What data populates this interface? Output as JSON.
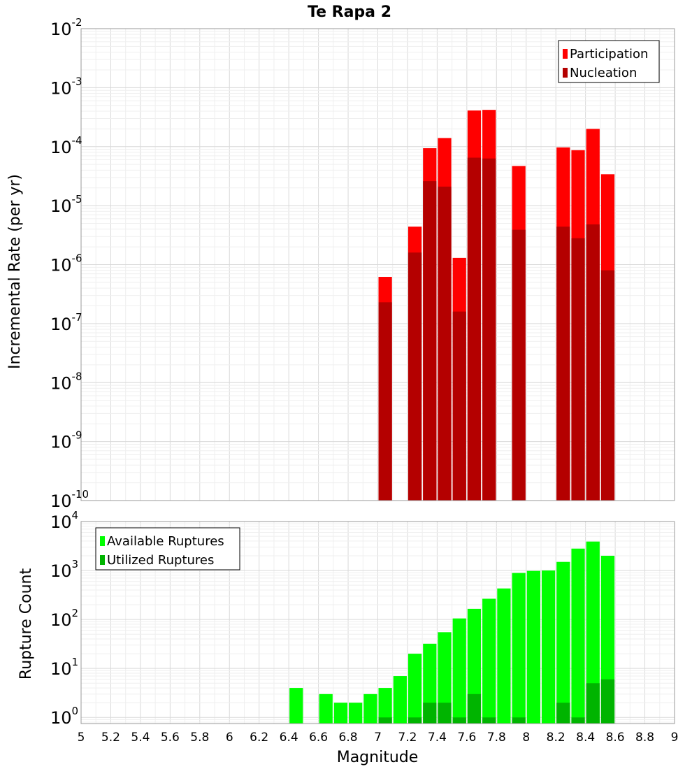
{
  "colors": {
    "participation": "#ff0000",
    "nucleation": "#b40000",
    "available": "#00ff00",
    "utilized": "#00b400",
    "grid_major": "#d9d9d9",
    "grid_minor": "#efefef",
    "frame": "#9a9a9a"
  },
  "chart_data": [
    {
      "type": "bar",
      "title": "Te Rapa 2",
      "ylabel": "Incremental Rate (per yr)",
      "xlabel": "",
      "xlim": [
        5,
        9
      ],
      "ylim": [
        1e-10,
        0.01
      ],
      "yscale": "log",
      "ytick_exponents": [
        "-2",
        "-3",
        "-4",
        "-5",
        "-6",
        "-7",
        "-8",
        "-9",
        "-10"
      ],
      "grid": true,
      "legend_position": "top-right",
      "bar_width": 0.1,
      "series": [
        {
          "name": "Participation",
          "x": [
            7.05,
            7.25,
            7.35,
            7.45,
            7.55,
            7.65,
            7.75,
            7.95,
            8.25,
            8.35,
            8.45,
            8.55
          ],
          "values": [
            6.2e-07,
            4.4e-06,
            9.4e-05,
            0.00014,
            1.3e-06,
            0.00041,
            0.00042,
            4.7e-05,
            9.7e-05,
            8.7e-05,
            0.0002,
            3.4e-05
          ]
        },
        {
          "name": "Nucleation",
          "x": [
            7.05,
            7.25,
            7.35,
            7.45,
            7.55,
            7.65,
            7.75,
            7.95,
            8.25,
            8.35,
            8.45,
            8.55
          ],
          "values": [
            2.3e-07,
            1.6e-06,
            2.6e-05,
            2.1e-05,
            1.6e-07,
            6.5e-05,
            6.3e-05,
            3.9e-06,
            4.4e-06,
            2.8e-06,
            4.8e-06,
            8e-07
          ]
        }
      ]
    },
    {
      "type": "bar",
      "title": "",
      "ylabel": "Rupture Count",
      "xlabel": "Magnitude",
      "xlim": [
        5,
        9
      ],
      "ylim": [
        0.75,
        10000.0
      ],
      "yscale": "log",
      "ytick_exponents": [
        "4",
        "3",
        "2",
        "1",
        "0"
      ],
      "xticks": [
        "5",
        "5.2",
        "5.4",
        "5.6",
        "5.8",
        "6",
        "6.2",
        "6.4",
        "6.6",
        "6.8",
        "7",
        "7.2",
        "7.4",
        "7.6",
        "7.8",
        "8",
        "8.2",
        "8.4",
        "8.6",
        "8.8",
        "9"
      ],
      "grid": true,
      "legend_position": "top-left",
      "bar_width": 0.1,
      "series": [
        {
          "name": "Available Ruptures",
          "x": [
            6.45,
            6.65,
            6.75,
            6.85,
            6.95,
            7.05,
            7.15,
            7.25,
            7.35,
            7.45,
            7.55,
            7.65,
            7.75,
            7.85,
            7.95,
            8.05,
            8.15,
            8.25,
            8.35,
            8.45,
            8.55
          ],
          "values": [
            4,
            3,
            2,
            2,
            3,
            4,
            7,
            20,
            32,
            55,
            105,
            165,
            265,
            430,
            890,
            980,
            1000,
            1500,
            2800,
            3900,
            2000
          ]
        },
        {
          "name": "Utilized Ruptures",
          "x": [
            7.05,
            7.25,
            7.35,
            7.45,
            7.55,
            7.65,
            7.75,
            7.95,
            8.25,
            8.35,
            8.45,
            8.55
          ],
          "values": [
            1,
            1,
            2,
            2,
            1,
            3,
            1,
            1,
            2,
            1,
            5,
            6
          ]
        }
      ]
    }
  ]
}
